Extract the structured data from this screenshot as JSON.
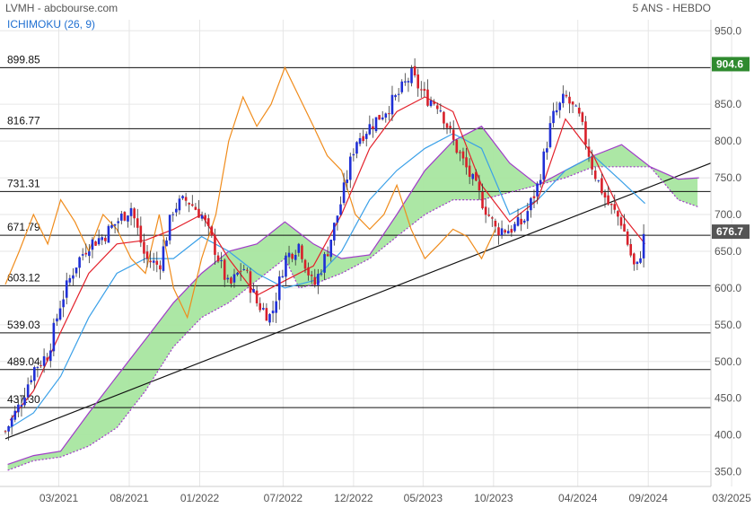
{
  "header": {
    "title": "LVMH - abcbourse.com",
    "period": "5 ANS - HEBDO",
    "indicator": "ICHIMOKU (26, 9)"
  },
  "colors": {
    "candle_up": "#1f2fd6",
    "candle_down": "#d8202a",
    "tenkan": "#e3212b",
    "kijun": "#3aa0e8",
    "chikou": "#f08c1c",
    "senkou_a": "#a03cc8",
    "kumo_bull": "#a8e6a0",
    "kumo_bear": "#f7a8ae",
    "trendline": "#111111",
    "level_line": "#111111",
    "grid": "#e6e6e6",
    "last_price_tag": "#555555",
    "high_tag": "#2f8a2f",
    "indicator_label": "#1f6fd1"
  },
  "chart_data": {
    "type": "candlestick",
    "frequency": "weekly",
    "ylim": [
      330,
      965
    ],
    "y_ticks": [
      "350.0",
      "400.0",
      "450.0",
      "500.0",
      "550.0",
      "600.0",
      "650.0",
      "700.0",
      "750.0",
      "800.0",
      "850.0",
      "900.0",
      "950.0"
    ],
    "x_ticks": [
      "03/2021",
      "08/2021",
      "01/2022",
      "07/2022",
      "12/2022",
      "05/2023",
      "10/2023",
      "04/2024",
      "09/2024",
      "03/2025"
    ],
    "levels": [
      "899.85",
      "816.77",
      "731.31",
      "671.79",
      "603.12",
      "539.03",
      "489.04",
      "437.30"
    ],
    "last_price": "676.7",
    "high_tag": "904.6",
    "trendline": {
      "start": [
        "2020-11-05",
        395
      ],
      "end": [
        "2025-01-15",
        770
      ]
    },
    "price_path": [
      [
        "2020-11-05",
        405
      ],
      [
        "2020-12-05",
        440
      ],
      [
        "2021-01-05",
        490
      ],
      [
        "2021-02-05",
        510
      ],
      [
        "2021-03-05",
        580
      ],
      [
        "2021-04-05",
        630
      ],
      [
        "2021-05-05",
        660
      ],
      [
        "2021-06-05",
        670
      ],
      [
        "2021-07-05",
        690
      ],
      [
        "2021-08-05",
        710
      ],
      [
        "2021-09-05",
        640
      ],
      [
        "2021-10-05",
        630
      ],
      [
        "2021-11-05",
        710
      ],
      [
        "2021-12-05",
        720
      ],
      [
        "2022-01-05",
        700
      ],
      [
        "2022-02-05",
        650
      ],
      [
        "2022-03-05",
        600
      ],
      [
        "2022-04-05",
        630
      ],
      [
        "2022-05-05",
        580
      ],
      [
        "2022-06-05",
        560
      ],
      [
        "2022-07-05",
        640
      ],
      [
        "2022-08-05",
        660
      ],
      [
        "2022-09-05",
        600
      ],
      [
        "2022-10-05",
        650
      ],
      [
        "2022-11-05",
        720
      ],
      [
        "2022-12-05",
        800
      ],
      [
        "2023-01-05",
        820
      ],
      [
        "2023-02-05",
        840
      ],
      [
        "2023-03-05",
        860
      ],
      [
        "2023-04-05",
        890
      ],
      [
        "2023-05-05",
        860
      ],
      [
        "2023-06-05",
        850
      ],
      [
        "2023-07-05",
        800
      ],
      [
        "2023-08-05",
        760
      ],
      [
        "2023-09-05",
        720
      ],
      [
        "2023-10-05",
        680
      ],
      [
        "2023-11-05",
        680
      ],
      [
        "2023-12-05",
        690
      ],
      [
        "2024-01-05",
        740
      ],
      [
        "2024-02-05",
        830
      ],
      [
        "2024-03-05",
        860
      ],
      [
        "2024-04-05",
        830
      ],
      [
        "2024-05-05",
        760
      ],
      [
        "2024-06-05",
        715
      ],
      [
        "2024-07-05",
        690
      ],
      [
        "2024-08-05",
        620
      ],
      [
        "2024-08-25",
        676.7
      ]
    ],
    "series": [
      {
        "key": "tenkan",
        "points": [
          [
            "2020-11-15",
            420
          ],
          [
            "2021-01-05",
            460
          ],
          [
            "2021-03-05",
            540
          ],
          [
            "2021-05-05",
            620
          ],
          [
            "2021-07-05",
            660
          ],
          [
            "2021-09-05",
            665
          ],
          [
            "2021-11-05",
            680
          ],
          [
            "2022-01-05",
            700
          ],
          [
            "2022-03-05",
            640
          ],
          [
            "2022-05-05",
            590
          ],
          [
            "2022-07-05",
            610
          ],
          [
            "2022-09-05",
            630
          ],
          [
            "2022-11-05",
            700
          ],
          [
            "2023-01-05",
            790
          ],
          [
            "2023-03-05",
            840
          ],
          [
            "2023-05-05",
            860
          ],
          [
            "2023-07-05",
            840
          ],
          [
            "2023-09-05",
            740
          ],
          [
            "2023-11-05",
            690
          ],
          [
            "2024-01-05",
            720
          ],
          [
            "2024-03-05",
            830
          ],
          [
            "2024-05-05",
            780
          ],
          [
            "2024-07-05",
            700
          ],
          [
            "2024-08-25",
            660
          ]
        ]
      },
      {
        "key": "kijun",
        "points": [
          [
            "2020-11-15",
            410
          ],
          [
            "2021-01-05",
            430
          ],
          [
            "2021-03-05",
            480
          ],
          [
            "2021-05-05",
            560
          ],
          [
            "2021-07-05",
            620
          ],
          [
            "2021-09-05",
            640
          ],
          [
            "2021-11-05",
            640
          ],
          [
            "2022-01-05",
            670
          ],
          [
            "2022-03-05",
            650
          ],
          [
            "2022-05-05",
            620
          ],
          [
            "2022-07-05",
            600
          ],
          [
            "2022-09-05",
            610
          ],
          [
            "2022-11-05",
            650
          ],
          [
            "2023-01-05",
            720
          ],
          [
            "2023-03-05",
            760
          ],
          [
            "2023-05-05",
            790
          ],
          [
            "2023-07-05",
            810
          ],
          [
            "2023-09-05",
            790
          ],
          [
            "2023-11-05",
            700
          ],
          [
            "2024-01-05",
            720
          ],
          [
            "2024-03-05",
            760
          ],
          [
            "2024-05-05",
            780
          ],
          [
            "2024-07-05",
            745
          ],
          [
            "2024-08-25",
            715
          ]
        ]
      },
      {
        "key": "chikou",
        "points": [
          [
            "2020-11-05",
            605
          ],
          [
            "2020-12-05",
            650
          ],
          [
            "2021-01-05",
            700
          ],
          [
            "2021-02-05",
            660
          ],
          [
            "2021-03-05",
            720
          ],
          [
            "2021-04-05",
            690
          ],
          [
            "2021-05-05",
            650
          ],
          [
            "2021-06-05",
            700
          ],
          [
            "2021-07-05",
            680
          ],
          [
            "2021-08-05",
            640
          ],
          [
            "2021-09-05",
            620
          ],
          [
            "2021-10-05",
            700
          ],
          [
            "2021-11-05",
            600
          ],
          [
            "2021-12-05",
            560
          ],
          [
            "2022-01-05",
            640
          ],
          [
            "2022-02-05",
            700
          ],
          [
            "2022-03-05",
            800
          ],
          [
            "2022-04-05",
            860
          ],
          [
            "2022-05-05",
            820
          ],
          [
            "2022-06-05",
            850
          ],
          [
            "2022-07-05",
            900
          ],
          [
            "2022-08-05",
            860
          ],
          [
            "2022-09-05",
            820
          ],
          [
            "2022-10-05",
            780
          ],
          [
            "2022-11-05",
            760
          ],
          [
            "2022-12-05",
            700
          ],
          [
            "2023-01-05",
            680
          ],
          [
            "2023-02-05",
            700
          ],
          [
            "2023-03-05",
            740
          ],
          [
            "2023-04-05",
            680
          ],
          [
            "2023-05-05",
            640
          ],
          [
            "2023-06-05",
            660
          ],
          [
            "2023-07-05",
            680
          ],
          [
            "2023-08-05",
            670
          ],
          [
            "2023-09-05",
            640
          ],
          [
            "2023-10-05",
            680
          ]
        ]
      },
      {
        "key": "senkou_a",
        "points": [
          [
            "2020-11-10",
            360
          ],
          [
            "2021-01-05",
            372
          ],
          [
            "2021-03-05",
            378
          ],
          [
            "2021-05-05",
            430
          ],
          [
            "2021-07-05",
            480
          ],
          [
            "2021-09-05",
            530
          ],
          [
            "2021-11-05",
            580
          ],
          [
            "2022-01-05",
            620
          ],
          [
            "2022-03-05",
            650
          ],
          [
            "2022-05-05",
            660
          ],
          [
            "2022-07-05",
            690
          ],
          [
            "2022-08-05",
            675
          ],
          [
            "2022-09-05",
            660
          ],
          [
            "2022-11-05",
            640
          ],
          [
            "2023-01-05",
            645
          ],
          [
            "2023-03-05",
            700
          ],
          [
            "2023-05-05",
            760
          ],
          [
            "2023-07-05",
            800
          ],
          [
            "2023-09-05",
            820
          ],
          [
            "2023-11-05",
            770
          ],
          [
            "2024-01-05",
            740
          ],
          [
            "2024-03-05",
            760
          ],
          [
            "2024-05-05",
            780
          ],
          [
            "2024-07-05",
            795
          ],
          [
            "2024-09-05",
            765
          ],
          [
            "2024-11-05",
            748
          ],
          [
            "2024-12-20",
            750
          ]
        ]
      },
      {
        "key": "senkou_b",
        "points": [
          [
            "2020-11-10",
            352
          ],
          [
            "2021-01-05",
            365
          ],
          [
            "2021-03-05",
            370
          ],
          [
            "2021-05-05",
            385
          ],
          [
            "2021-07-05",
            410
          ],
          [
            "2021-09-05",
            460
          ],
          [
            "2021-11-05",
            520
          ],
          [
            "2022-01-05",
            560
          ],
          [
            "2022-03-05",
            580
          ],
          [
            "2022-05-05",
            610
          ],
          [
            "2022-07-05",
            640
          ],
          [
            "2022-08-05",
            600
          ],
          [
            "2022-09-05",
            605
          ],
          [
            "2022-11-05",
            620
          ],
          [
            "2023-01-05",
            640
          ],
          [
            "2023-03-05",
            670
          ],
          [
            "2023-05-05",
            700
          ],
          [
            "2023-07-05",
            720
          ],
          [
            "2023-09-05",
            720
          ],
          [
            "2023-11-05",
            730
          ],
          [
            "2024-01-05",
            740
          ],
          [
            "2024-03-05",
            750
          ],
          [
            "2024-05-05",
            765
          ],
          [
            "2024-07-05",
            765
          ],
          [
            "2024-09-05",
            765
          ],
          [
            "2024-11-05",
            720
          ],
          [
            "2024-12-20",
            710
          ]
        ]
      }
    ]
  }
}
